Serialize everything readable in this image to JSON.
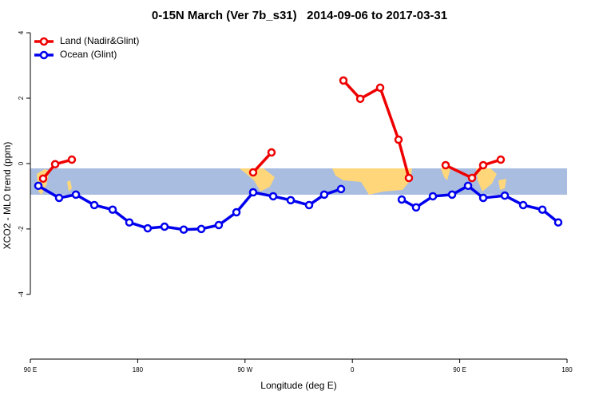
{
  "chart_data": {
    "type": "line",
    "title": "0-15N March (Ver 7b_s31)   2014-09-06 to 2017-03-31",
    "x_label": "Longitude (deg E)",
    "y_label": "XCO2 - MLO trend (ppm)",
    "xlim": [
      90,
      540
    ],
    "xticks": [
      {
        "value": 90,
        "label": "90 E"
      },
      180,
      {
        "value": 270,
        "label": "90 W"
      },
      0,
      {
        "value": 450,
        "label": "90 E"
      },
      {
        "value": 540,
        "label": "180"
      }
    ],
    "ylim": [
      -5.98,
      4.27
    ],
    "yticks": [
      -4,
      -2,
      0,
      2,
      4
    ],
    "legend": "top-left",
    "series": [
      {
        "name": "Land (Nadir&Glint)",
        "color": "#ee0000",
        "x": [
          100.7,
          110.8,
          124.8,
          null,
          276.8,
          292.2,
          null,
          352.5,
          366.6,
          383.3,
          398.7,
          407.4,
          null,
          438.2,
          460.3,
          469.7,
          484.4
        ],
        "values": [
          -0.46,
          -0.02,
          0.12,
          null,
          -0.27,
          0.34,
          null,
          2.54,
          1.98,
          2.32,
          0.73,
          -0.44,
          null,
          -0.05,
          -0.44,
          -0.05,
          0.12
        ]
      },
      {
        "name": "Ocean (Glint)",
        "color": "#0000ee",
        "x": [
          96.7,
          114.1,
          128.2,
          143.6,
          159,
          173,
          188.4,
          202.5,
          218.6,
          233.3,
          248,
          262.8,
          276.8,
          293.6,
          308.3,
          323.7,
          336.4,
          350.5,
          null,
          401.4,
          413.4,
          427.5,
          443.6,
          457,
          469.7,
          487.8,
          503.2,
          519.3,
          532.6
        ],
        "values": [
          -0.68,
          -1.05,
          -0.95,
          -1.27,
          -1.41,
          -1.8,
          -1.98,
          -1.93,
          -2.02,
          -2.0,
          -1.88,
          -1.49,
          -0.88,
          -1.0,
          -1.12,
          -1.27,
          -0.95,
          -0.78,
          null,
          -1.1,
          -1.34,
          -1.0,
          -0.95,
          -0.68,
          -1.05,
          -0.98,
          -1.27,
          -1.41,
          -1.8
        ]
      }
    ]
  }
}
